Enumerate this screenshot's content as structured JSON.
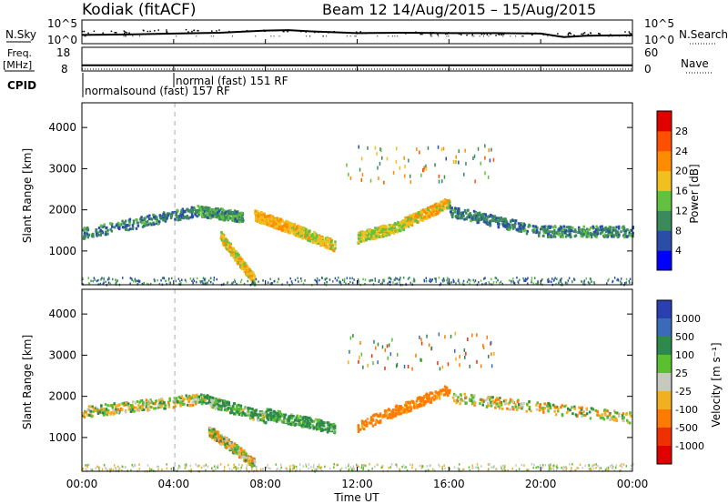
{
  "header": {
    "station": "Kodiak (fitACF)",
    "beam_date": "Beam 12   14/Aug/2015 – 15/Aug/2015"
  },
  "nsky_panel": {
    "left_label": "N.Sky",
    "left_ticks": [
      "10^5",
      "10^0"
    ],
    "right_ticks": [
      "10^5",
      "10^0"
    ],
    "right_label": "N.Search"
  },
  "freq_panel": {
    "left_label_1": "Freq.",
    "left_label_2": "[MHz]",
    "left_ticks": [
      "18",
      "8"
    ],
    "right_ticks": [
      "60",
      "0"
    ],
    "right_label": "Nave"
  },
  "cpid": {
    "label": "CPID",
    "mode_1": "normalsound (fast)  157 RF",
    "mode_2": "normal (fast)  151 RF"
  },
  "power_panel": {
    "ylabel": "Slant Range [km]",
    "yticks": [
      "4000",
      "3000",
      "2000",
      "1000"
    ],
    "colorbar_label": "Power [dB]",
    "colorbar_ticks": [
      "28",
      "24",
      "20",
      "16",
      "12",
      "8",
      "4"
    ]
  },
  "velocity_panel": {
    "ylabel": "Slant Range [km]",
    "yticks": [
      "4000",
      "3000",
      "2000",
      "1000"
    ],
    "colorbar_label": "Velocity [m s⁻¹]",
    "colorbar_ticks": [
      "1000",
      "500",
      "100",
      "25",
      "-25",
      "-100",
      "-500",
      "-1000"
    ]
  },
  "xaxis": {
    "ticks": [
      "00:00",
      "04:00",
      "08:00",
      "12:00",
      "16:00",
      "20:00",
      "00:00"
    ],
    "label": "Time UT"
  },
  "colors": {
    "power_scale": [
      "#0000ff",
      "#2a4ea8",
      "#3a8a5c",
      "#64c040",
      "#f0c020",
      "#ff8c00",
      "#ff5000",
      "#e00000"
    ],
    "velocity_scale": [
      "#2a40b0",
      "#3a6ab8",
      "#2e8a4a",
      "#5ac030",
      "#c8c8c0",
      "#f0b020",
      "#ff7a00",
      "#f03000",
      "#e00000"
    ]
  },
  "chart_data": [
    {
      "type": "line",
      "title": "N.Sky",
      "x": [
        0,
        2,
        4,
        6,
        8,
        9,
        10,
        12,
        14,
        16,
        18,
        20,
        21,
        22,
        24
      ],
      "y_log10": [
        1.8,
        1.9,
        2.1,
        2.3,
        2.8,
        2.9,
        2.6,
        2.2,
        2.3,
        2.2,
        2.2,
        2.1,
        1.3,
        1.6,
        1.7
      ],
      "xlim": [
        0,
        24
      ],
      "ylim_log10": [
        0,
        5
      ]
    },
    {
      "type": "line",
      "title": "Freq.",
      "x": [
        0,
        24
      ],
      "y": [
        10.2,
        10.2
      ],
      "xlim": [
        0,
        24
      ],
      "ylim": [
        8,
        18
      ]
    },
    {
      "type": "heatmap",
      "title": "Power [dB]",
      "xlabel": "Time UT",
      "ylabel": "Slant Range [km]",
      "xlim": [
        0,
        24
      ],
      "ylim": [
        180,
        4600
      ],
      "clim": [
        0,
        30
      ],
      "bands": [
        {
          "t": [
            0,
            5
          ],
          "r_start": 1450,
          "r_end": 2000,
          "power": 9
        },
        {
          "t": [
            5,
            7
          ],
          "r_start": 2000,
          "r_end": 1850,
          "power": 11
        },
        {
          "t": [
            6,
            7.5
          ],
          "r_start": 1400,
          "r_end": 300,
          "power": 18
        },
        {
          "t": [
            7.5,
            9
          ],
          "r_start": 1900,
          "r_end": 1600,
          "power": 20
        },
        {
          "t": [
            9,
            11
          ],
          "r_start": 1600,
          "r_end": 1150,
          "power": 17
        },
        {
          "t": [
            12,
            14
          ],
          "r_start": 1350,
          "r_end": 1650,
          "power": 16
        },
        {
          "t": [
            14,
            16
          ],
          "r_start": 1700,
          "r_end": 2200,
          "power": 19
        },
        {
          "t": [
            16,
            20
          ],
          "r_start": 2000,
          "r_end": 1500,
          "power": 9
        },
        {
          "t": [
            20,
            24
          ],
          "r_start": 1500,
          "r_end": 1500,
          "power": 10
        }
      ]
    },
    {
      "type": "heatmap",
      "title": "Velocity [m s⁻¹]",
      "xlabel": "Time UT",
      "ylabel": "Slant Range [km]",
      "xlim": [
        0,
        24
      ],
      "ylim": [
        180,
        4600
      ],
      "clim": [
        -1000,
        1000
      ],
      "bands": [
        {
          "t": [
            0,
            5
          ],
          "r_start": 1650,
          "r_end": 1950,
          "velocity": 0
        },
        {
          "t": [
            5,
            8
          ],
          "r_start": 2000,
          "r_end": 1500,
          "velocity": 100
        },
        {
          "t": [
            5.5,
            7.5
          ],
          "r_start": 1200,
          "r_end": 400,
          "velocity": 0
        },
        {
          "t": [
            8,
            11
          ],
          "r_start": 1600,
          "r_end": 1250,
          "velocity": 150
        },
        {
          "t": [
            12,
            16
          ],
          "r_start": 1300,
          "r_end": 2200,
          "velocity": -200
        },
        {
          "t": [
            16,
            24
          ],
          "r_start": 2000,
          "r_end": 1500,
          "velocity": 0
        }
      ]
    }
  ]
}
